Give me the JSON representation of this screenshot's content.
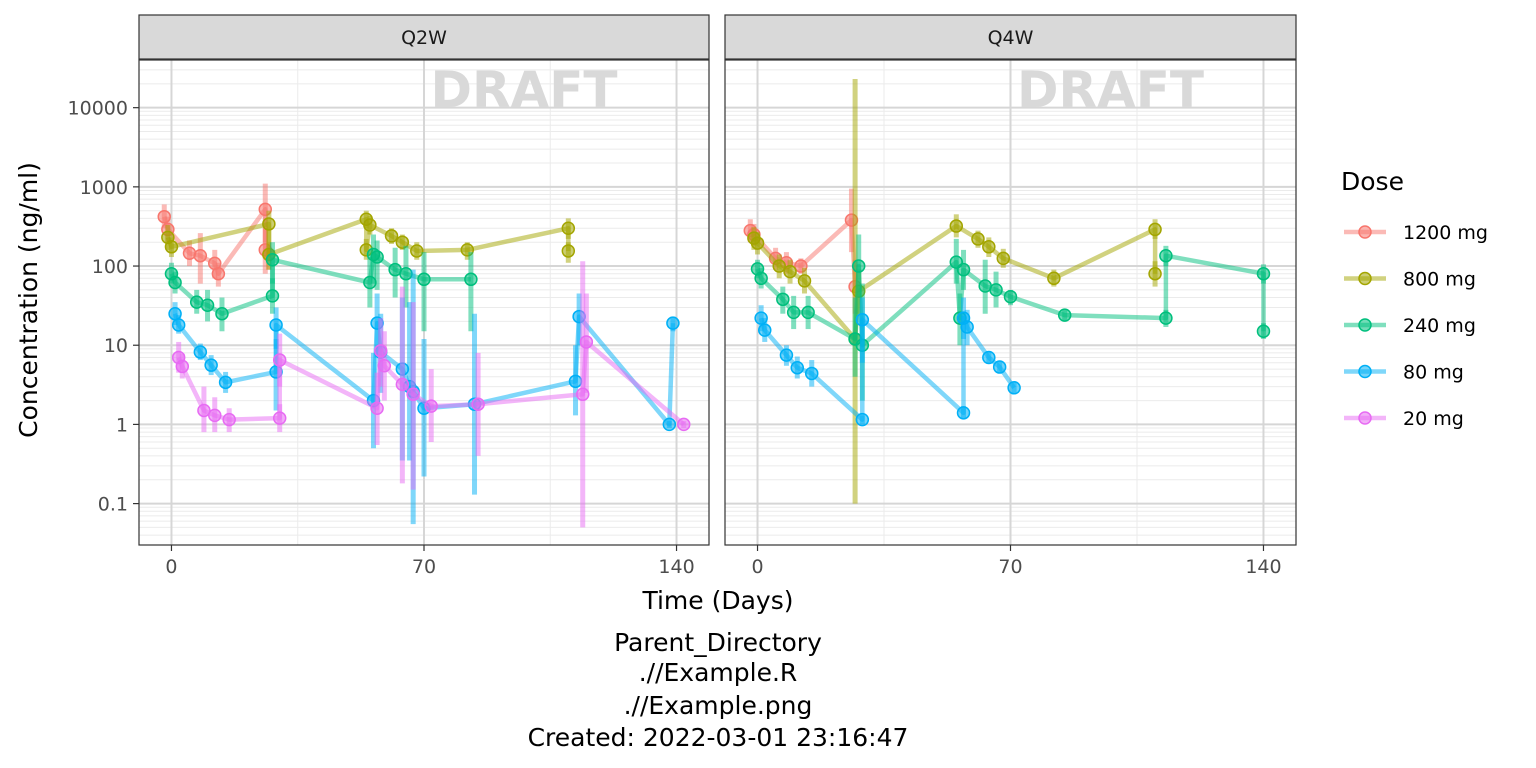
{
  "chart_data": {
    "type": "line",
    "facets": [
      "Q2W",
      "Q4W"
    ],
    "xlabel": "Time (Days)",
    "ylabel": "Concentration (ng/ml)",
    "x_ticks": [
      0,
      70,
      140
    ],
    "x_lim": [
      -9,
      149
    ],
    "y_scale": "log10",
    "y_ticks": [
      0.1,
      1,
      10,
      100,
      1000,
      10000
    ],
    "y_tick_labels": [
      "0.1",
      "1",
      "10",
      "100",
      "1000",
      "10000"
    ],
    "y_lim": [
      0.03,
      40000
    ],
    "grid": true,
    "watermark": "DRAFT",
    "legend_title": "Dose",
    "legend_position": "right",
    "series": [
      {
        "name": "1200 mg",
        "color": "#F8766D"
      },
      {
        "name": "800 mg",
        "color": "#A3A500"
      },
      {
        "name": "240 mg",
        "color": "#00BF7D"
      },
      {
        "name": "80 mg",
        "color": "#00B0F6"
      },
      {
        "name": "20 mg",
        "color": "#E76BF3"
      }
    ],
    "panels": [
      {
        "facet": "Q2W",
        "series": {
          "1200 mg": [
            [
              -2,
              420,
              300,
              600
            ],
            [
              -1,
              290,
              200,
              420
            ],
            [
              5,
              145,
              100,
              210
            ],
            [
              8,
              135,
              60,
              260
            ],
            [
              12,
              108,
              70,
              160
            ],
            [
              13,
              80,
              55,
              110
            ],
            [
              26,
              520,
              200,
              1100
            ],
            [
              26,
              160,
              80,
              300
            ],
            [
              27,
              140,
              90,
              200
            ]
          ],
          "800 mg": [
            [
              -1,
              230,
              160,
              330
            ],
            [
              0,
              175,
              130,
              230
            ],
            [
              27,
              340,
              200,
              500
            ],
            [
              27,
              140,
              90,
              200
            ],
            [
              54,
              390,
              300,
              500
            ],
            [
              54,
              160,
              120,
              220
            ],
            [
              55,
              330,
              250,
              430
            ],
            [
              61,
              240,
              190,
              300
            ],
            [
              64,
              200,
              160,
              250
            ],
            [
              68,
              155,
              120,
              200
            ],
            [
              82,
              160,
              120,
              200
            ],
            [
              110,
              300,
              220,
              400
            ],
            [
              110,
              155,
              110,
              200
            ]
          ],
          "240 mg": [
            [
              0,
              80,
              60,
              110
            ],
            [
              1,
              62,
              45,
              85
            ],
            [
              7,
              35,
              25,
              50
            ],
            [
              10,
              32,
              20,
              50
            ],
            [
              14,
              25,
              15,
              40
            ],
            [
              28,
              42,
              25,
              70
            ],
            [
              28,
              120,
              60,
              200
            ],
            [
              55,
              62,
              30,
              130
            ],
            [
              56,
              140,
              60,
              250
            ],
            [
              57,
              130,
              50,
              210
            ],
            [
              62,
              90,
              40,
              170
            ],
            [
              65,
              80,
              30,
              180
            ],
            [
              70,
              68,
              15,
              150
            ],
            [
              83,
              68,
              15,
              150
            ]
          ],
          "80 mg": [
            [
              1,
              25,
              18,
              35
            ],
            [
              2,
              18,
              14,
              24
            ],
            [
              8,
              8.2,
              6.5,
              10.5
            ],
            [
              11,
              5.6,
              4.2,
              7.5
            ],
            [
              15,
              3.4,
              2.5,
              4.6
            ],
            [
              29,
              4.6,
              1.5,
              12
            ],
            [
              29,
              18,
              9,
              30
            ],
            [
              56,
              2.0,
              0.5,
              8
            ],
            [
              57,
              19,
              7,
              45
            ],
            [
              58,
              8.2,
              2.5,
              25
            ],
            [
              64,
              5.0,
              0.35,
              40
            ],
            [
              66,
              3.0,
              0.35,
              35
            ],
            [
              67,
              2.6,
              0.055,
              90
            ],
            [
              70,
              1.6,
              0.22,
              12
            ],
            [
              84,
              1.8,
              0.13,
              25
            ],
            [
              112,
              3.5,
              1.3,
              10
            ],
            [
              113,
              23,
              10,
              45
            ],
            [
              138,
              1.0,
              0.9,
              1.1
            ],
            [
              139,
              19,
              15,
              23
            ]
          ],
          "20 mg": [
            [
              2,
              7.0,
              4.5,
              11
            ],
            [
              3,
              5.4,
              3.8,
              7.8
            ],
            [
              9,
              1.5,
              0.8,
              3.0
            ],
            [
              12,
              1.3,
              0.8,
              2.2
            ],
            [
              16,
              1.15,
              0.8,
              1.6
            ],
            [
              30,
              1.2,
              0.8,
              1.8
            ],
            [
              30,
              6.5,
              3,
              14
            ],
            [
              57,
              1.6,
              0.55,
              4.5
            ],
            [
              58,
              8.5,
              3,
              22
            ],
            [
              59,
              5.5,
              2,
              15
            ],
            [
              64,
              3.2,
              0.18,
              55
            ],
            [
              67,
              2.4,
              0.15,
              35
            ],
            [
              72,
              1.7,
              0.6,
              5
            ],
            [
              85,
              1.8,
              0.4,
              8
            ],
            [
              114,
              2.4,
              0.05,
              115
            ],
            [
              115,
              11,
              2.5,
              45
            ],
            [
              142,
              1.0,
              0.9,
              1.1
            ]
          ]
        }
      },
      {
        "facet": "Q4W",
        "series": {
          "1200 mg": [
            [
              -2,
              280,
              200,
              390
            ],
            [
              -1,
              250,
              180,
              340
            ],
            [
              5,
              125,
              90,
              170
            ],
            [
              8,
              110,
              80,
              150
            ],
            [
              12,
              100,
              80,
              125
            ],
            [
              26,
              380,
              150,
              950
            ],
            [
              27,
              55,
              25,
              120
            ]
          ],
          "800 mg": [
            [
              -1,
              225,
              160,
              310
            ],
            [
              0,
              195,
              140,
              270
            ],
            [
              6,
              100,
              70,
              140
            ],
            [
              9,
              85,
              60,
              120
            ],
            [
              13,
              65,
              45,
              95
            ],
            [
              27,
              12,
              0.1,
              23000
            ],
            [
              28,
              48,
              25,
              90
            ],
            [
              55,
              320,
              230,
              450
            ],
            [
              61,
              220,
              170,
              280
            ],
            [
              64,
              175,
              130,
              230
            ],
            [
              68,
              125,
              95,
              165
            ],
            [
              82,
              70,
              55,
              90
            ],
            [
              110,
              290,
              220,
              390
            ],
            [
              110,
              80,
              55,
              115
            ]
          ],
          "240 mg": [
            [
              0,
              92,
              70,
              120
            ],
            [
              1,
              70,
              52,
              95
            ],
            [
              7,
              38,
              25,
              55
            ],
            [
              10,
              26,
              16,
              42
            ],
            [
              14,
              26,
              16,
              42
            ],
            [
              27,
              12,
              4,
              40
            ],
            [
              28,
              100,
              40,
              250
            ],
            [
              29,
              10,
              2,
              60
            ],
            [
              55,
              112,
              60,
              220
            ],
            [
              56,
              22,
              10,
              45
            ],
            [
              57,
              90,
              50,
              160
            ],
            [
              63,
              56,
              25,
              120
            ],
            [
              66,
              50,
              30,
              85
            ],
            [
              70,
              41,
              32,
              50
            ],
            [
              85,
              24,
              20,
              28
            ],
            [
              113,
              22,
              17,
              28
            ],
            [
              113,
              135,
              100,
              180
            ],
            [
              140,
              80,
              60,
              105
            ],
            [
              140,
              15,
              12,
              19
            ]
          ],
          "80 mg": [
            [
              1,
              22,
              15,
              32
            ],
            [
              2,
              15.5,
              11,
              22
            ],
            [
              8,
              7.5,
              5.5,
              10
            ],
            [
              11,
              5.2,
              3.8,
              7.2
            ],
            [
              15,
              4.4,
              3,
              6.5
            ],
            [
              29,
              1.15,
              1.0,
              1.3
            ],
            [
              29,
              21,
              6,
              40
            ],
            [
              57,
              1.4,
              1.2,
              1.7
            ],
            [
              57,
              22,
              12,
              40
            ],
            [
              58,
              17,
              10,
              28
            ],
            [
              64,
              7.0,
              5.8,
              8.4
            ],
            [
              67,
              5.3,
              4.4,
              6.4
            ],
            [
              71,
              2.9,
              2.4,
              3.4
            ]
          ]
        }
      }
    ]
  },
  "caption": {
    "line1": "Parent_Directory",
    "line2": ".//Example.R",
    "line3": ".//Example.png",
    "line4": "Created: 2022-03-01 23:16:47"
  }
}
